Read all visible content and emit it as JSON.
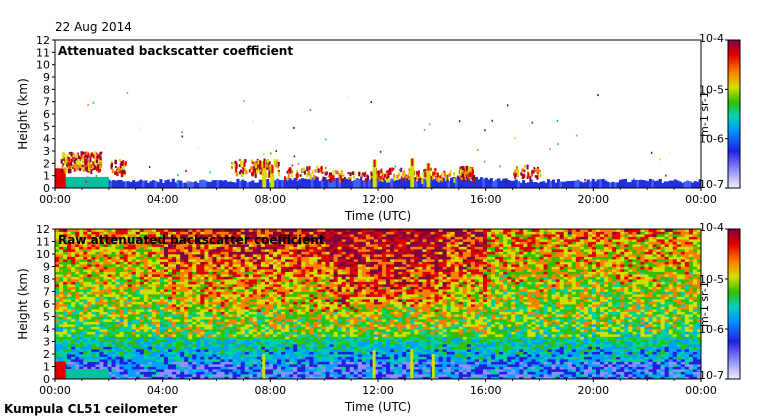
{
  "date": "22 Aug 2014",
  "footer": "Kumpula CL51 ceilometer",
  "colors": {
    "scale": [
      "#e8e8f4",
      "#9090ff",
      "#2020e0",
      "#00a0ff",
      "#00d0a0",
      "#30c000",
      "#d0e000",
      "#ff8000",
      "#e00000",
      "#800040"
    ]
  },
  "chart_data": [
    {
      "type": "heatmap",
      "title": "Attenuated backscatter coefficient",
      "xlabel": "Time (UTC)",
      "ylabel": "Height (km)",
      "x_ticks": [
        "00:00",
        "04:00",
        "08:00",
        "12:00",
        "16:00",
        "20:00",
        "00:00"
      ],
      "y_ticks": [
        "0",
        "1",
        "2",
        "3",
        "4",
        "5",
        "6",
        "7",
        "8",
        "9",
        "10",
        "11",
        "12"
      ],
      "xlim": [
        "00:00",
        "24:00"
      ],
      "ylim": [
        0,
        12
      ],
      "colorbar": {
        "scale": "log",
        "range": [
          1e-07,
          0.0001
        ],
        "ticks": [
          "10-7",
          "10-6",
          "10-5",
          "10-4"
        ],
        "label": "m-1 sr-1"
      }
    },
    {
      "type": "heatmap",
      "title": "Raw attenuated backscatter coefficient",
      "xlabel": "Time (UTC)",
      "ylabel": "Height (km)",
      "x_ticks": [
        "00:00",
        "04:00",
        "08:00",
        "12:00",
        "16:00",
        "20:00",
        "00:00"
      ],
      "y_ticks": [
        "0",
        "1",
        "2",
        "3",
        "4",
        "5",
        "6",
        "7",
        "8",
        "9",
        "10",
        "11",
        "12"
      ],
      "xlim": [
        "00:00",
        "24:00"
      ],
      "ylim": [
        0,
        12
      ],
      "colorbar": {
        "scale": "log",
        "range": [
          1e-07,
          0.0001
        ],
        "ticks": [
          "10-7",
          "10-6",
          "10-5",
          "10-4"
        ],
        "label": "m-1 sr-1"
      }
    }
  ]
}
